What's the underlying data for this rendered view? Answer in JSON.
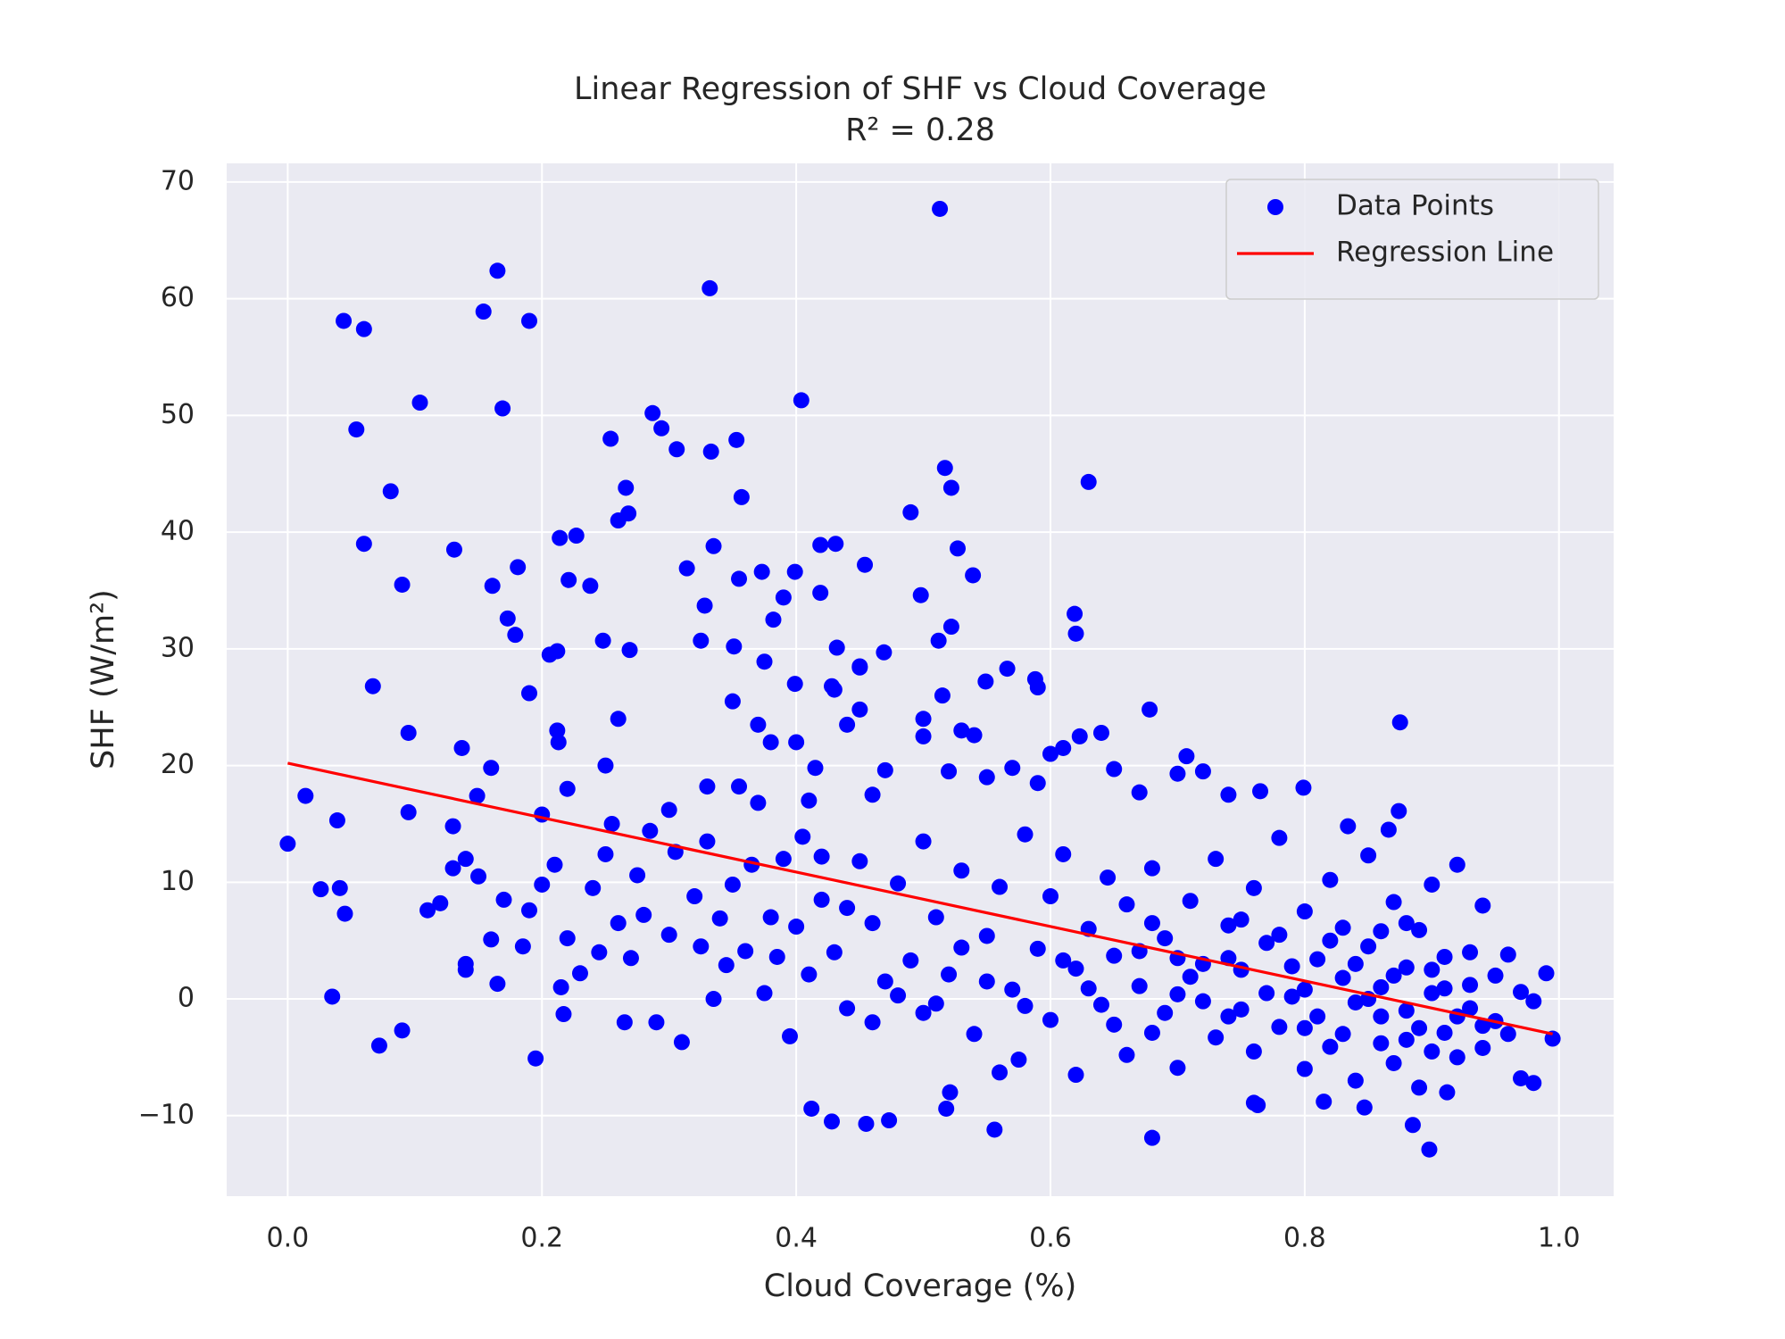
{
  "chart_data": {
    "type": "scatter",
    "title": "Linear Regression of SHF vs Cloud Coverage",
    "subtitle": "R² = 0.28",
    "x_label": "Cloud Coverage (%)",
    "y_label": "SHF (W/m²)",
    "xlim": [
      -0.048,
      1.043
    ],
    "ylim": [
      -16.9,
      71.6
    ],
    "xticks": [
      {
        "value": 0,
        "label": "0.0"
      },
      0.2,
      0.4,
      0.6,
      0.8,
      {
        "value": 1,
        "label": "1.0"
      }
    ],
    "yticks": [
      {
        "value": -10,
        "label": "−10"
      },
      0,
      10,
      20,
      30,
      40,
      50,
      60,
      70
    ],
    "grid": true,
    "background": "#eaeaf2",
    "legend": "upper right",
    "series": [
      {
        "name": "Data Points",
        "type": "scatter",
        "color": "#0000ff",
        "x": [
          0.0,
          0.014,
          0.039,
          0.035,
          0.026,
          0.041,
          0.045,
          0.044,
          0.06,
          0.054,
          0.06,
          0.067,
          0.081,
          0.09,
          0.095,
          0.095,
          0.104,
          0.131,
          0.137,
          0.154,
          0.165,
          0.169,
          0.181,
          0.19,
          0.19,
          0.161,
          0.173,
          0.179,
          0.16,
          0.149,
          0.072,
          0.09,
          0.195,
          0.217,
          0.214,
          0.227,
          0.221,
          0.238,
          0.206,
          0.212,
          0.212,
          0.213,
          0.248,
          0.254,
          0.26,
          0.266,
          0.268,
          0.269,
          0.287,
          0.294,
          0.306,
          0.314,
          0.328,
          0.325,
          0.332,
          0.333,
          0.335,
          0.353,
          0.355,
          0.357,
          0.351,
          0.375,
          0.373,
          0.382,
          0.39,
          0.399,
          0.404,
          0.399,
          0.419,
          0.431,
          0.419,
          0.454,
          0.432,
          0.45,
          0.428,
          0.469,
          0.49,
          0.498,
          0.517,
          0.522,
          0.513,
          0.527,
          0.539,
          0.512,
          0.522,
          0.515,
          0.549,
          0.566,
          0.588,
          0.59,
          0.63,
          0.619,
          0.62,
          0.64,
          0.623,
          0.678,
          0.707,
          0.799,
          0.765,
          0.875,
          0.874,
          0.866,
          0.834,
          0.68,
          0.556,
          0.473,
          0.455,
          0.428,
          0.412,
          0.518,
          0.521,
          0.898,
          0.885,
          0.98,
          0.995,
          0.99,
          0.763,
          0.815,
          0.847,
          0.912,
          0.11,
          0.12,
          0.13,
          0.14,
          0.15,
          0.14,
          0.14,
          0.16,
          0.165,
          0.17,
          0.13,
          0.185,
          0.19,
          0.2,
          0.21,
          0.22,
          0.215,
          0.23,
          0.24,
          0.245,
          0.25,
          0.255,
          0.26,
          0.265,
          0.27,
          0.275,
          0.28,
          0.285,
          0.29,
          0.3,
          0.305,
          0.31,
          0.32,
          0.325,
          0.33,
          0.335,
          0.34,
          0.345,
          0.35,
          0.355,
          0.36,
          0.365,
          0.37,
          0.375,
          0.38,
          0.385,
          0.39,
          0.395,
          0.4,
          0.405,
          0.41,
          0.2,
          0.22,
          0.25,
          0.26,
          0.3,
          0.33,
          0.38,
          0.4,
          0.41,
          0.415,
          0.35,
          0.37,
          0.45,
          0.45,
          0.43,
          0.44,
          0.46,
          0.47,
          0.5,
          0.5,
          0.53,
          0.54,
          0.52,
          0.55,
          0.57,
          0.6,
          0.61,
          0.59,
          0.65,
          0.67,
          0.7,
          0.72,
          0.74,
          0.42,
          0.43,
          0.44,
          0.45,
          0.46,
          0.47,
          0.48,
          0.49,
          0.5,
          0.5,
          0.51,
          0.52,
          0.53,
          0.54,
          0.55,
          0.56,
          0.56,
          0.57,
          0.575,
          0.58,
          0.59,
          0.6,
          0.6,
          0.61,
          0.62,
          0.62,
          0.63,
          0.64,
          0.645,
          0.65,
          0.66,
          0.66,
          0.67,
          0.68,
          0.68,
          0.69,
          0.7,
          0.7,
          0.71,
          0.72,
          0.73,
          0.73,
          0.74,
          0.75,
          0.75,
          0.76,
          0.76,
          0.77,
          0.78,
          0.78,
          0.79,
          0.8,
          0.8,
          0.81,
          0.81,
          0.82,
          0.82,
          0.83,
          0.83,
          0.84,
          0.84,
          0.85,
          0.85,
          0.86,
          0.86,
          0.87,
          0.87,
          0.88,
          0.88,
          0.89,
          0.89,
          0.9,
          0.9,
          0.91,
          0.91,
          0.92,
          0.92,
          0.93,
          0.93,
          0.94,
          0.94,
          0.95,
          0.95,
          0.96,
          0.97,
          0.97,
          0.98,
          0.96,
          0.8,
          0.79,
          0.77,
          0.74,
          0.72,
          0.71,
          0.69,
          0.67,
          0.65,
          0.63,
          0.61,
          0.58,
          0.55,
          0.53,
          0.51,
          0.48,
          0.46,
          0.44,
          0.42,
          0.83,
          0.85,
          0.87,
          0.89,
          0.91,
          0.93,
          0.82,
          0.84,
          0.86,
          0.88,
          0.9,
          0.92,
          0.94,
          0.78,
          0.76,
          0.74,
          0.8,
          0.86,
          0.88,
          0.9,
          0.75,
          0.7,
          0.68
        ],
        "values": [
          13.3,
          17.4,
          15.3,
          0.2,
          9.4,
          9.5,
          7.3,
          58.1,
          57.4,
          48.8,
          39.0,
          26.8,
          43.5,
          35.5,
          22.8,
          16.0,
          51.1,
          38.5,
          21.5,
          58.9,
          62.4,
          50.6,
          37.0,
          58.1,
          26.2,
          35.4,
          32.6,
          31.2,
          19.8,
          17.4,
          -4.0,
          -2.7,
          -5.1,
          -1.3,
          39.5,
          39.7,
          35.9,
          35.4,
          29.5,
          29.8,
          23.0,
          22.0,
          30.7,
          48.0,
          41.0,
          43.8,
          41.6,
          29.9,
          50.2,
          48.9,
          47.1,
          36.9,
          33.7,
          30.7,
          60.9,
          46.9,
          38.8,
          47.9,
          36.0,
          43.0,
          30.2,
          28.9,
          36.6,
          32.5,
          34.4,
          36.6,
          51.3,
          27.0,
          38.9,
          39.0,
          34.8,
          37.2,
          30.1,
          28.4,
          26.8,
          29.7,
          41.7,
          34.6,
          45.5,
          43.8,
          67.7,
          38.6,
          36.3,
          30.7,
          31.9,
          26.0,
          27.2,
          28.3,
          27.4,
          26.7,
          44.3,
          33.0,
          31.3,
          22.8,
          22.5,
          24.8,
          20.8,
          18.1,
          17.8,
          23.7,
          16.1,
          14.5,
          14.8,
          -11.9,
          -11.2,
          -10.4,
          -10.7,
          -10.5,
          -9.4,
          -9.4,
          -8.0,
          -12.9,
          -10.8,
          -7.2,
          -3.4,
          2.2,
          -9.1,
          -8.8,
          -9.3,
          -8.0,
          7.6,
          8.2,
          11.2,
          12.0,
          10.5,
          3.0,
          2.5,
          5.1,
          1.3,
          8.5,
          14.8,
          4.5,
          7.6,
          9.8,
          11.5,
          5.2,
          1.0,
          2.2,
          9.5,
          4.0,
          12.4,
          15.0,
          6.5,
          -2.0,
          3.5,
          10.6,
          7.2,
          14.4,
          -2.0,
          5.5,
          12.6,
          -3.7,
          8.8,
          4.5,
          13.5,
          0.0,
          6.9,
          2.9,
          9.8,
          18.2,
          4.1,
          11.5,
          16.8,
          0.5,
          7.0,
          3.6,
          12.0,
          -3.2,
          6.2,
          13.9,
          2.1,
          15.8,
          18.0,
          20.0,
          24.0,
          16.2,
          18.2,
          22.0,
          22.0,
          17.0,
          19.8,
          25.5,
          23.5,
          28.5,
          24.8,
          26.5,
          23.5,
          17.5,
          19.6,
          24.0,
          22.5,
          23.0,
          22.6,
          19.5,
          19.0,
          19.8,
          21.0,
          21.5,
          18.5,
          19.7,
          17.7,
          19.3,
          19.5,
          17.5,
          8.5,
          4.0,
          -0.8,
          11.8,
          6.5,
          1.5,
          9.9,
          3.3,
          -1.2,
          13.5,
          7.0,
          2.1,
          11.0,
          -3.0,
          5.4,
          9.6,
          -6.3,
          0.8,
          -5.2,
          14.1,
          4.3,
          -1.8,
          8.8,
          12.4,
          2.6,
          -6.5,
          6.0,
          -0.5,
          10.4,
          3.7,
          -4.8,
          8.1,
          1.1,
          -2.9,
          11.2,
          5.2,
          -5.9,
          0.4,
          8.4,
          3.0,
          -3.3,
          12.0,
          6.3,
          -0.9,
          2.5,
          -8.9,
          9.5,
          4.8,
          -2.4,
          13.8,
          0.2,
          7.5,
          -6.0,
          3.4,
          -1.5,
          10.2,
          -4.1,
          1.8,
          6.1,
          -7.0,
          -0.3,
          4.5,
          12.3,
          -3.8,
          1.0,
          8.3,
          -5.5,
          2.7,
          -1.0,
          5.9,
          -7.6,
          0.5,
          9.8,
          -2.9,
          3.6,
          -5.0,
          11.5,
          1.2,
          -0.8,
          8.0,
          -4.2,
          2.0,
          -1.9,
          3.8,
          -6.8,
          0.6,
          -0.2,
          -3.0,
          -2.5,
          2.8,
          0.5,
          -1.5,
          -0.2,
          1.9,
          -1.2,
          4.1,
          -2.2,
          0.9,
          3.3,
          -0.6,
          1.5,
          4.4,
          -0.4,
          0.3,
          -2.0,
          7.8,
          12.2,
          -3.0,
          0.0,
          2.0,
          -2.5,
          0.9,
          4.0,
          5.0,
          3.0,
          -1.5,
          -3.5,
          -4.5,
          -1.5,
          -2.3,
          5.5,
          -4.5,
          3.5,
          0.8,
          5.8,
          6.5,
          2.5,
          6.8,
          3.5,
          6.5
        ]
      },
      {
        "name": "Regression Line",
        "type": "line",
        "color": "#ff0000",
        "x": [
          0,
          0.995
        ],
        "values": [
          20.2,
          -3.0
        ]
      }
    ]
  }
}
